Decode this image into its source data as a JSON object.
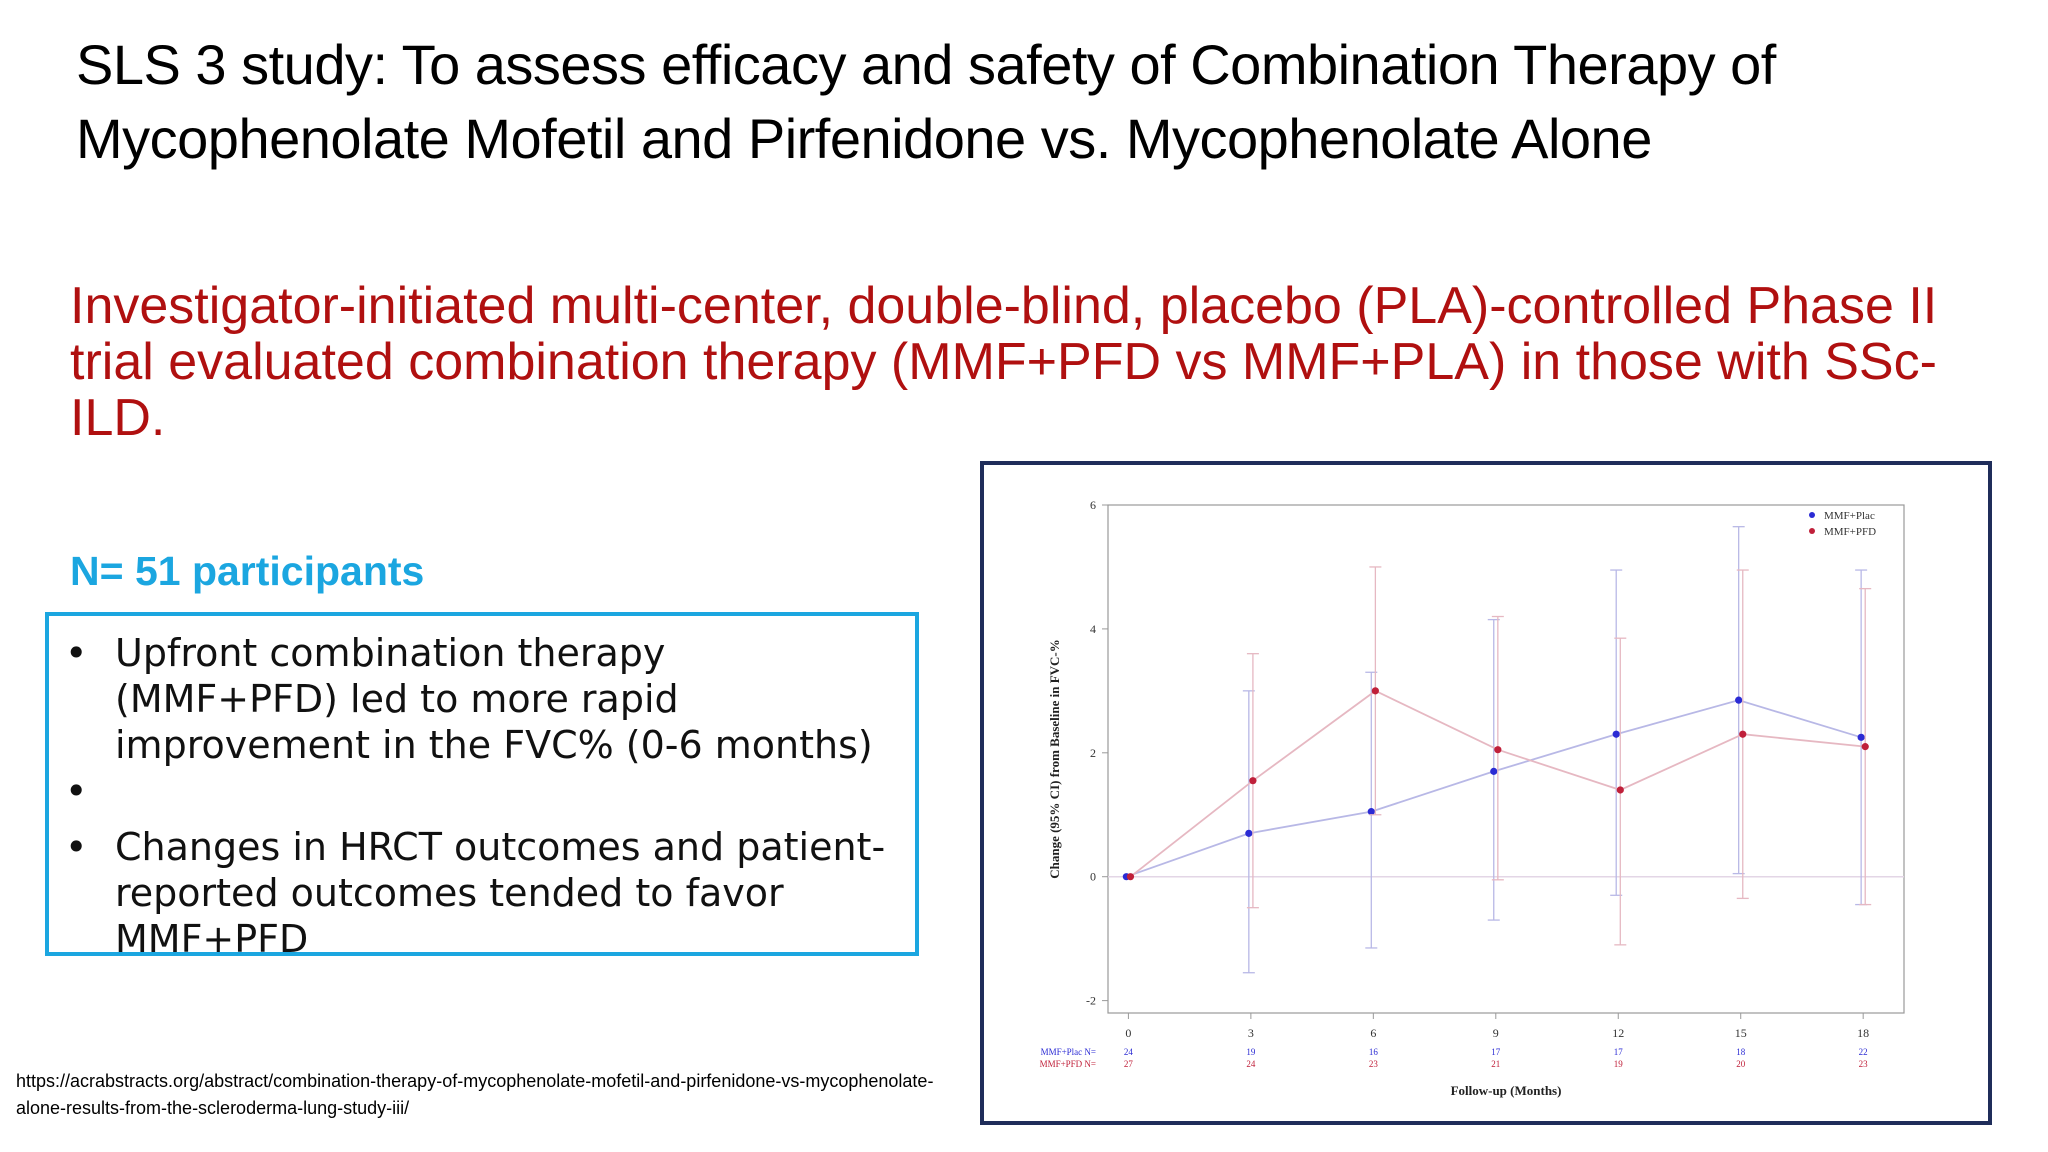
{
  "title": "SLS 3 study: To assess efficacy and safety of Combination Therapy of Mycophenolate Mofetil and Pirfenidone vs. Mycophenolate Alone",
  "subtitle": "Investigator-initiated multi-center, double-blind, placebo (PLA)-controlled Phase II trial evaluated combination therapy (MMF+PFD vs MMF+PLA) in those with SSc-ILD.",
  "n_label": "N= 51 participants",
  "bullets": [
    "Upfront combination therapy (MMF+PFD) led to more rapid improvement in the FVC% (0-6 months)",
    "",
    "Changes in HRCT outcomes and patient-reported outcomes tended to favor MMF+PFD"
  ],
  "bullet_symbol": "•",
  "reference": "https://acrabstracts.org/abstract/combination-therapy-of-mycophenolate-mofetil-and-pirfenidone-vs-mycophenolate-alone-results-from-the-scleroderma-lung-study-iii/",
  "colors": {
    "title": "#000000",
    "subtitle": "#b01010",
    "accent_blue": "#1ba6e0",
    "frame_navy": "#1f2d5a",
    "series_plac": "#2b2bd4",
    "series_pfd": "#c0203a"
  },
  "chart_data": {
    "type": "line",
    "title": "",
    "xlabel": "Follow-up (Months)",
    "ylabel": "Change (95% CI) from Baseline in FVC-%",
    "x": [
      0,
      3,
      6,
      9,
      12,
      15,
      18
    ],
    "x_ticks": [
      "0",
      "3",
      "6",
      "9",
      "12",
      "15",
      "18"
    ],
    "y_ticks": [
      "-2",
      "0",
      "2",
      "4",
      "6"
    ],
    "xlim": [
      -0.5,
      19
    ],
    "ylim": [
      -2.2,
      6
    ],
    "grid": false,
    "reference_line": 0,
    "legend_position": "top-right",
    "series": [
      {
        "name": "MMF+Plac",
        "values": [
          0,
          0.7,
          1.05,
          1.7,
          2.3,
          2.85,
          2.25
        ],
        "ci_low": [
          0,
          -1.55,
          -1.15,
          -0.7,
          -0.3,
          0.05,
          -0.45
        ],
        "ci_high": [
          0,
          3.0,
          3.3,
          4.15,
          4.95,
          5.65,
          4.95
        ],
        "n_label": "MMF+Plac  N=",
        "n": [
          "24",
          "19",
          "16",
          "17",
          "17",
          "18",
          "22"
        ]
      },
      {
        "name": "MMF+PFD",
        "values": [
          0,
          1.55,
          3.0,
          2.05,
          1.4,
          2.3,
          2.1
        ],
        "ci_low": [
          0,
          -0.5,
          1.0,
          -0.05,
          -1.1,
          -0.35,
          -0.45
        ],
        "ci_high": [
          0,
          3.6,
          5.0,
          4.2,
          3.85,
          4.95,
          4.65
        ],
        "n_label": "MMF+PFD  N=",
        "n": [
          "27",
          "24",
          "23",
          "21",
          "19",
          "20",
          "23"
        ]
      }
    ]
  }
}
